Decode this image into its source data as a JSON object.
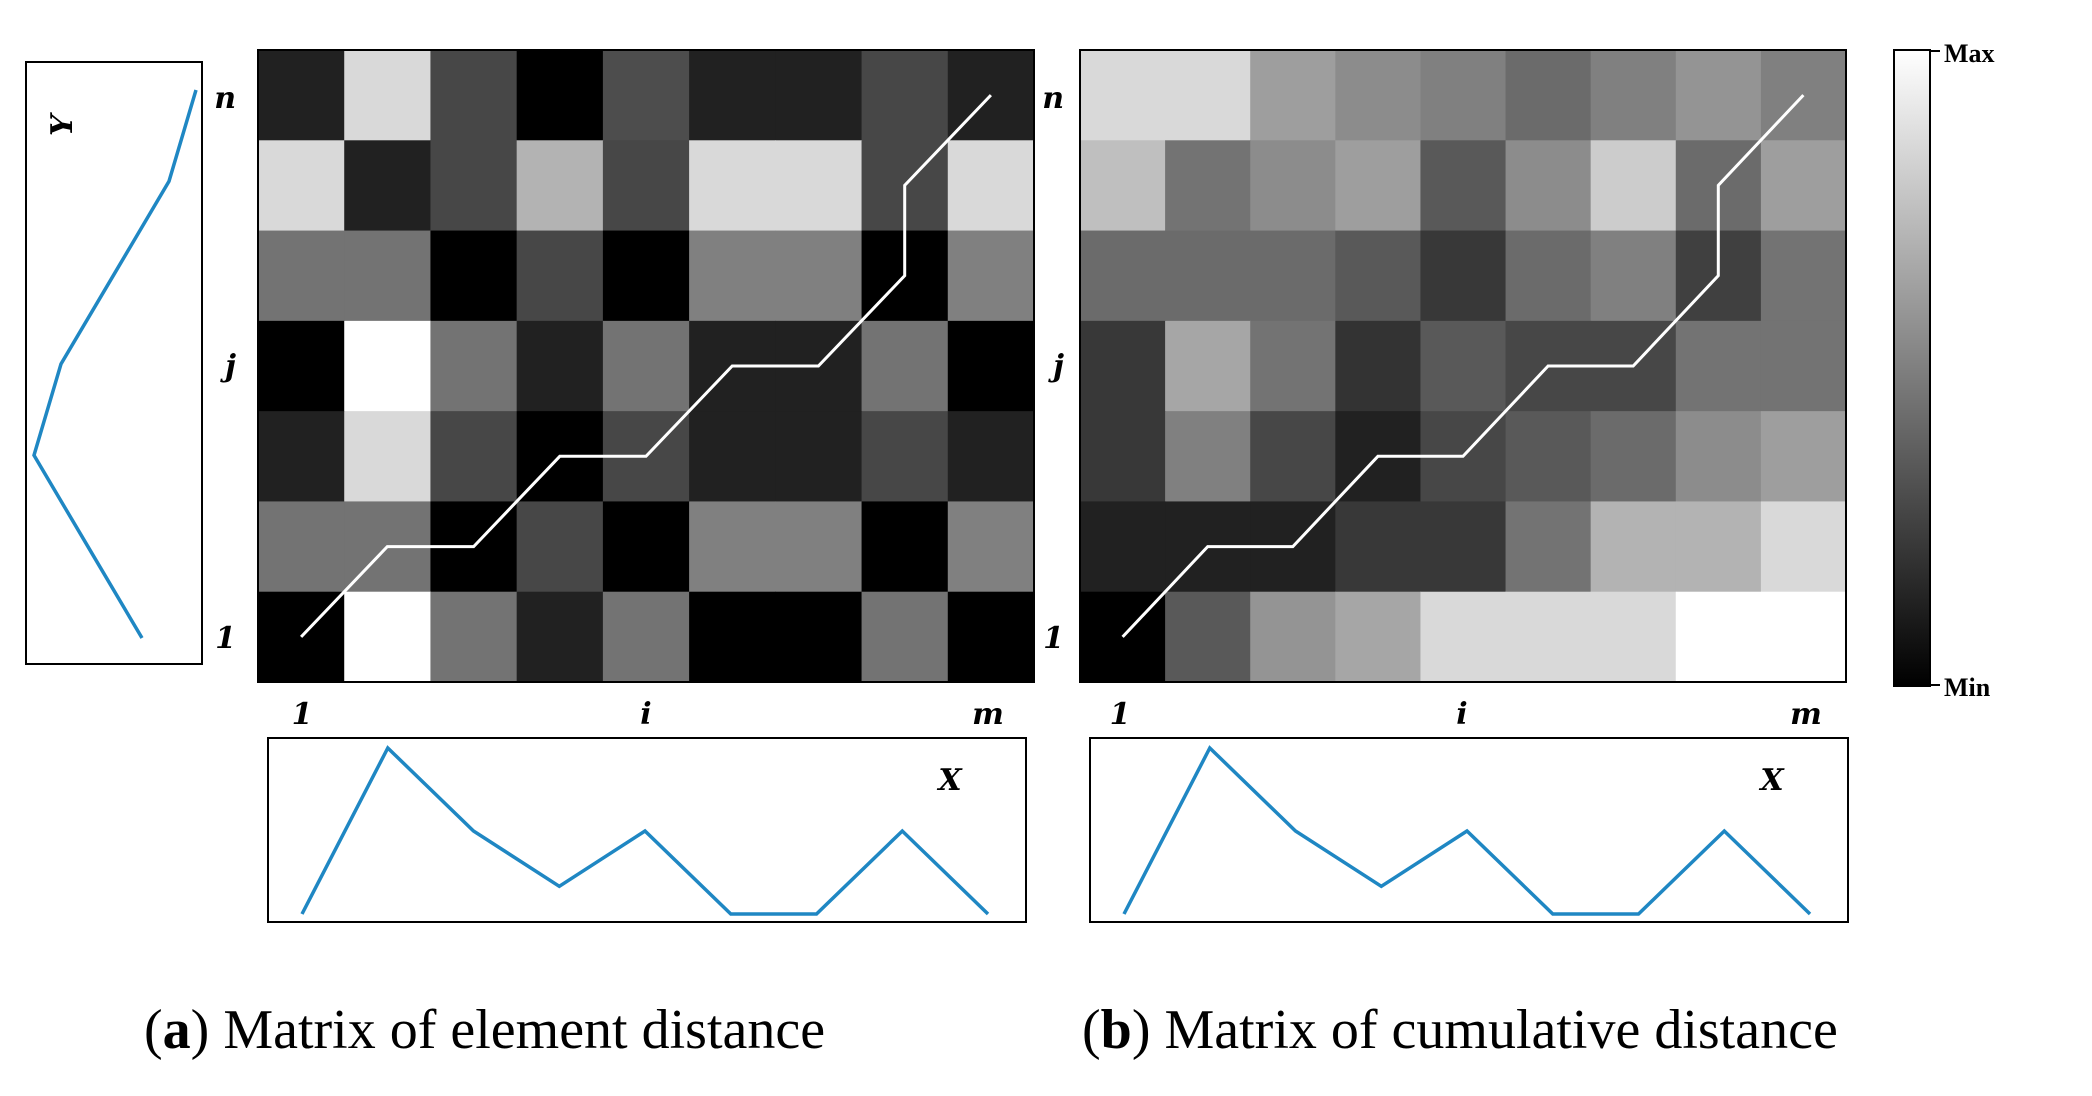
{
  "colors": {
    "curve": "#1f87c3",
    "path": "#ffffff",
    "frame": "#000000"
  },
  "signal_y": {
    "label": "Y",
    "values": [
      7,
      6,
      4,
      2,
      1,
      3,
      5
    ]
  },
  "signal_x": {
    "label": "X",
    "values": [
      0,
      6,
      3,
      1,
      3,
      0,
      0,
      3,
      0
    ]
  },
  "panel_a": {
    "caption_letter": "a",
    "caption_text": " Matrix of element distance",
    "axis_labels": {
      "x_first": "1",
      "x_mid": "i",
      "x_last": "m",
      "y_first": "1",
      "y_mid": "j",
      "y_last": "n"
    },
    "matrix_top_to_bottom": [
      [
        0.13,
        0.85,
        0.28,
        0.0,
        0.3,
        0.13,
        0.13,
        0.28,
        0.13
      ],
      [
        0.85,
        0.13,
        0.28,
        0.7,
        0.28,
        0.85,
        0.85,
        0.28,
        0.85
      ],
      [
        0.45,
        0.45,
        0.0,
        0.28,
        0.0,
        0.5,
        0.5,
        0.0,
        0.5
      ],
      [
        0.0,
        1.0,
        0.45,
        0.13,
        0.45,
        0.13,
        0.13,
        0.45,
        0.0
      ],
      [
        0.13,
        0.85,
        0.28,
        0.0,
        0.28,
        0.13,
        0.13,
        0.28,
        0.13
      ],
      [
        0.45,
        0.45,
        0.0,
        0.28,
        0.0,
        0.5,
        0.5,
        0.0,
        0.5
      ],
      [
        0.0,
        1.0,
        0.45,
        0.13,
        0.45,
        0.0,
        0.0,
        0.45,
        0.0
      ]
    ],
    "warp_path": [
      [
        1,
        1
      ],
      [
        2,
        2
      ],
      [
        3,
        2
      ],
      [
        4,
        3
      ],
      [
        5,
        3
      ],
      [
        6,
        4
      ],
      [
        7,
        4
      ],
      [
        8,
        5
      ],
      [
        8,
        6
      ],
      [
        9,
        7
      ]
    ]
  },
  "panel_b": {
    "caption_letter": "b",
    "caption_text": " Matrix of cumulative distance",
    "axis_labels": {
      "x_first": "1",
      "x_mid": "i",
      "x_last": "m",
      "y_first": "1",
      "y_mid": "j",
      "y_last": "n"
    },
    "matrix_top_to_bottom": [
      [
        0.85,
        0.85,
        0.62,
        0.55,
        0.5,
        0.42,
        0.5,
        0.58,
        0.5
      ],
      [
        0.75,
        0.45,
        0.55,
        0.62,
        0.35,
        0.55,
        0.8,
        0.42,
        0.62
      ],
      [
        0.42,
        0.42,
        0.42,
        0.35,
        0.22,
        0.42,
        0.5,
        0.25,
        0.45
      ],
      [
        0.22,
        0.65,
        0.45,
        0.2,
        0.35,
        0.28,
        0.28,
        0.45,
        0.45
      ],
      [
        0.22,
        0.5,
        0.28,
        0.13,
        0.28,
        0.35,
        0.42,
        0.55,
        0.62
      ],
      [
        0.13,
        0.13,
        0.13,
        0.22,
        0.22,
        0.45,
        0.7,
        0.7,
        0.85
      ],
      [
        0.0,
        0.35,
        0.58,
        0.65,
        0.85,
        0.85,
        0.85,
        1.0,
        1.0
      ]
    ],
    "warp_path": [
      [
        1,
        1
      ],
      [
        2,
        2
      ],
      [
        3,
        2
      ],
      [
        4,
        3
      ],
      [
        5,
        3
      ],
      [
        6,
        4
      ],
      [
        7,
        4
      ],
      [
        8,
        5
      ],
      [
        8,
        6
      ],
      [
        9,
        7
      ]
    ]
  },
  "colorbar": {
    "max_label": "Max",
    "min_label": "Min"
  }
}
